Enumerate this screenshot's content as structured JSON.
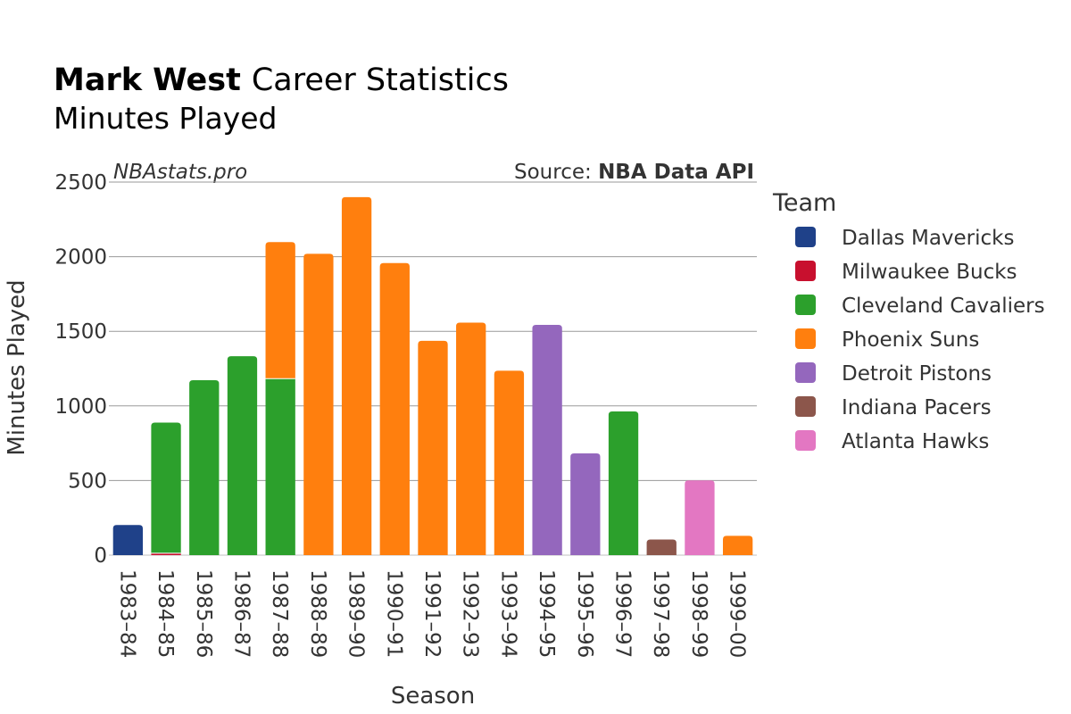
{
  "header": {
    "player": "Mark West",
    "title_rest": "Career Statistics",
    "subtitle": "Minutes Played"
  },
  "watermark": "NBAstats.pro",
  "source": {
    "prefix": "Source: ",
    "name": "NBA Data API"
  },
  "legend": {
    "title": "Team"
  },
  "chart_data": {
    "type": "bar",
    "stacked": true,
    "title": "Mark West Career Statistics",
    "subtitle": "Minutes Played",
    "xlabel": "Season",
    "ylabel": "Minutes Played",
    "ylim": [
      0,
      2500
    ],
    "yticks": [
      0,
      500,
      1000,
      1500,
      2000,
      2500
    ],
    "grid": true,
    "legend_position": "right",
    "categories": [
      "1983–84",
      "1984–85",
      "1985–86",
      "1986–87",
      "1987–88",
      "1988–89",
      "1989–90",
      "1990–91",
      "1991–92",
      "1992–93",
      "1993–94",
      "1994–95",
      "1995–96",
      "1996–97",
      "1997–98",
      "1998–99",
      "1999–00"
    ],
    "series": [
      {
        "name": "Dallas Mavericks",
        "color": "#1f4189",
        "values": [
          202,
          0,
          0,
          0,
          0,
          0,
          0,
          0,
          0,
          0,
          0,
          0,
          0,
          0,
          0,
          0,
          0
        ]
      },
      {
        "name": "Milwaukee Bucks",
        "color": "#c8102e",
        "values": [
          0,
          13,
          0,
          0,
          0,
          0,
          0,
          0,
          0,
          0,
          0,
          0,
          0,
          0,
          0,
          0,
          0
        ]
      },
      {
        "name": "Cleveland Cavaliers",
        "color": "#2ca02c",
        "values": [
          0,
          875,
          1172,
          1333,
          1183,
          0,
          0,
          0,
          0,
          0,
          0,
          0,
          0,
          963,
          0,
          0,
          0
        ]
      },
      {
        "name": "Phoenix Suns",
        "color": "#ff7f0e",
        "values": [
          0,
          0,
          0,
          0,
          915,
          2019,
          2399,
          1957,
          1436,
          1558,
          1236,
          0,
          0,
          0,
          0,
          0,
          129
        ]
      },
      {
        "name": "Detroit Pistons",
        "color": "#9467bd",
        "values": [
          0,
          0,
          0,
          0,
          0,
          0,
          0,
          0,
          0,
          0,
          0,
          1543,
          682,
          0,
          0,
          0,
          0
        ]
      },
      {
        "name": "Indiana Pacers",
        "color": "#8c564b",
        "values": [
          0,
          0,
          0,
          0,
          0,
          0,
          0,
          0,
          0,
          0,
          0,
          0,
          0,
          0,
          105,
          0,
          0
        ]
      },
      {
        "name": "Atlanta Hawks",
        "color": "#e377c2",
        "values": [
          0,
          0,
          0,
          0,
          0,
          0,
          0,
          0,
          0,
          0,
          0,
          0,
          0,
          0,
          0,
          501,
          0
        ]
      }
    ]
  }
}
